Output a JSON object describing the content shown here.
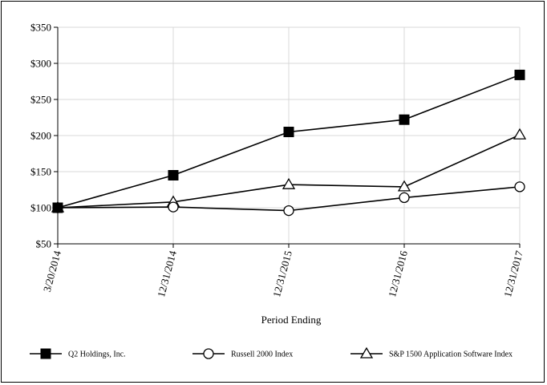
{
  "chart_data": {
    "type": "line",
    "xlabel": "Period Ending",
    "ylabel": "",
    "categories": [
      "3/20/2014",
      "12/31/2014",
      "12/31/2015",
      "12/31/2016",
      "12/31/2017"
    ],
    "ylim": [
      50,
      350
    ],
    "yticks": [
      "$50",
      "$100",
      "$150",
      "$200",
      "$250",
      "$300",
      "$350"
    ],
    "ytick_values": [
      50,
      100,
      150,
      200,
      250,
      300,
      350
    ],
    "grid": true,
    "legend_position": "bottom",
    "series": [
      {
        "name": "Q2 Holdings, Inc.",
        "marker": "filled-square",
        "values": [
          100,
          145,
          205,
          222,
          284
        ]
      },
      {
        "name": "Russell 2000 Index",
        "marker": "open-circle",
        "values": [
          100,
          101,
          96,
          114,
          129
        ]
      },
      {
        "name": "S&P 1500 Application Software Index",
        "marker": "open-triangle",
        "values": [
          100,
          108,
          132,
          129,
          201
        ]
      }
    ],
    "colors": {
      "line": "#000000",
      "grid": "#d9d9d9",
      "background": "#ffffff"
    }
  }
}
